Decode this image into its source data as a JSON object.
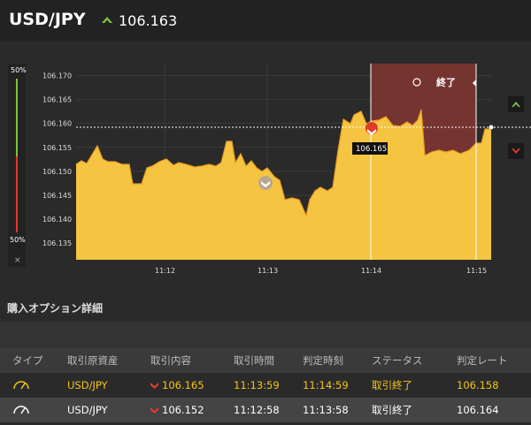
{
  "header": {
    "pair": "USD/JPY",
    "price": "106.163",
    "up_color": "#7cc43b"
  },
  "chart": {
    "pct_top": "50%",
    "pct_bottom": "50%",
    "close_label": "×",
    "y_ticks": [
      "106.170",
      "106.165",
      "106.160",
      "106.155",
      "106.150",
      "106.145",
      "106.140",
      "106.135"
    ],
    "x_ticks": [
      "11:12",
      "11:13",
      "11:14",
      "11:15"
    ],
    "end_label": "終了",
    "entry_label": "106.165",
    "colors": {
      "area": "#f5c542",
      "line": "#f0a030",
      "end_zone": "#7a3530",
      "put": "#e03a2a",
      "call": "#7cc43b"
    }
  },
  "section": {
    "title": "購入オプション詳細"
  },
  "table": {
    "headers": [
      "タイプ",
      "取引原資産",
      "取引内容",
      "取引時間",
      "判定時刻",
      "ステータス",
      "判定レート"
    ],
    "rows": [
      {
        "asset": "USD/JPY",
        "content": "106.165",
        "time": "11:13:59",
        "judge": "11:14:59",
        "status": "取引終了",
        "rate": "106.158"
      },
      {
        "asset": "USD/JPY",
        "content": "106.152",
        "time": "11:12:58",
        "judge": "11:13:58",
        "status": "取引終了",
        "rate": "106.164"
      }
    ]
  }
}
